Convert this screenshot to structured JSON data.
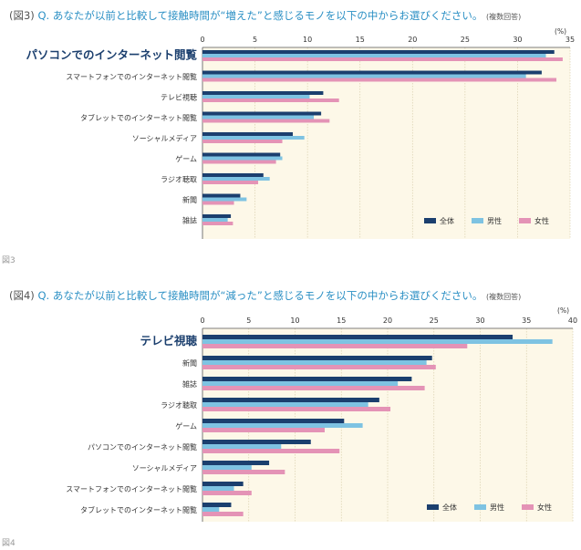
{
  "colors": {
    "all": "#1b3f6e",
    "male": "#7ec3e2",
    "female": "#e493b6",
    "bg": "#fdf8e8",
    "accent": "#1b3f6e"
  },
  "chart_data": [
    {
      "type": "bar",
      "fig_label": "(図3)",
      "question": "Q. あなたが以前と比較して接触時間が“増えた”と感じるモノを以下の中からお選びください。",
      "note": "(複数回答)",
      "unit": "(%)",
      "caption": "図3",
      "categories": [
        "パソコンでのインターネット閲覧",
        "スマートフォンでのインターネット閲覧",
        "テレビ視聴",
        "タブレットでのインターネット閲覧",
        "ソーシャルメディア",
        "ゲーム",
        "ラジオ聴取",
        "新聞",
        "雑誌"
      ],
      "highlight_index": 0,
      "xlim": [
        0,
        35
      ],
      "ticks": [
        "0",
        "5",
        "10",
        "15",
        "20",
        "25",
        "30",
        "35"
      ],
      "series": [
        {
          "name": "全体",
          "values": [
            33.5,
            32.3,
            11.5,
            11.3,
            8.6,
            7.4,
            5.8,
            3.6,
            2.7
          ]
        },
        {
          "name": "男性",
          "values": [
            32.7,
            30.8,
            10.2,
            10.6,
            9.7,
            7.6,
            6.4,
            4.2,
            2.4
          ]
        },
        {
          "name": "女性",
          "values": [
            34.3,
            33.7,
            13.0,
            12.1,
            7.6,
            7.0,
            5.3,
            3.0,
            2.9
          ]
        }
      ]
    },
    {
      "type": "bar",
      "fig_label": "(図4)",
      "question": "Q. あなたが以前と比較して接触時間が“減った”と感じるモノを以下の中からお選びください。",
      "note": "(複数回答)",
      "unit": "(%)",
      "caption": "図4",
      "categories": [
        "テレビ視聴",
        "新聞",
        "雑誌",
        "ラジオ聴取",
        "ゲーム",
        "パソコンでのインターネット閲覧",
        "ソーシャルメディア",
        "スマートフォンでのインターネット閲覧",
        "タブレットでのインターネット閲覧"
      ],
      "highlight_index": 0,
      "xlim": [
        0,
        40
      ],
      "ticks": [
        "0",
        "5",
        "10",
        "15",
        "20",
        "25",
        "30",
        "35",
        "40"
      ],
      "series": [
        {
          "name": "全体",
          "values": [
            33.5,
            24.8,
            22.6,
            19.1,
            15.3,
            11.7,
            7.2,
            4.4,
            3.1
          ]
        },
        {
          "name": "男性",
          "values": [
            37.8,
            24.2,
            21.1,
            17.9,
            17.3,
            8.5,
            5.3,
            3.4,
            1.8
          ]
        },
        {
          "name": "女性",
          "values": [
            28.6,
            25.2,
            24.0,
            20.3,
            13.2,
            14.8,
            8.9,
            5.3,
            4.4
          ]
        }
      ]
    }
  ]
}
